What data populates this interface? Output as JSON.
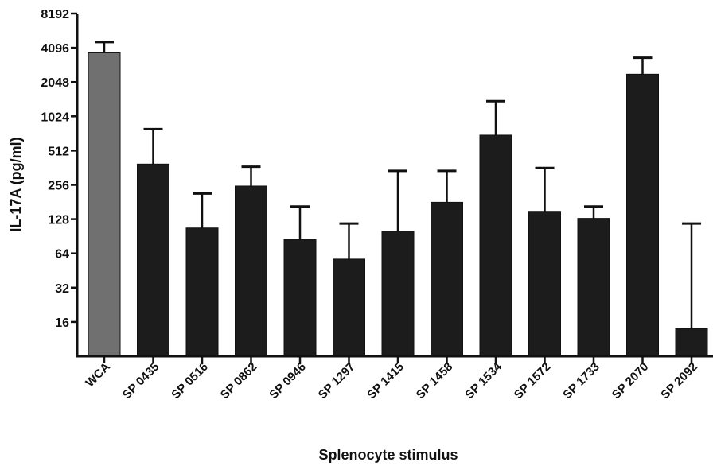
{
  "chart_data": {
    "type": "bar",
    "title": "",
    "xlabel": "Splenocyte stimulus",
    "ylabel": "IL-17A (pg/ml)",
    "y_scale": "log2",
    "ylim": [
      8,
      8192
    ],
    "yticks": [
      16,
      32,
      64,
      128,
      256,
      512,
      1024,
      2048,
      4096,
      8192
    ],
    "grid": false,
    "categories": [
      "WCA",
      "SP 0435",
      "SP 0516",
      "SP 0862",
      "SP 0946",
      "SP 1297",
      "SP 1415",
      "SP 1458",
      "SP 1534",
      "SP 1572",
      "SP 1733",
      "SP 2070",
      "SP 2092"
    ],
    "values": [
      3700,
      390,
      107,
      250,
      85,
      57,
      100,
      180,
      700,
      150,
      130,
      2400,
      14
    ],
    "error_upper": [
      4600,
      790,
      215,
      370,
      165,
      117,
      340,
      340,
      1390,
      360,
      165,
      3350,
      117
    ],
    "colors": {
      "WCA": "#707070",
      "default": "#1c1c1c"
    }
  }
}
